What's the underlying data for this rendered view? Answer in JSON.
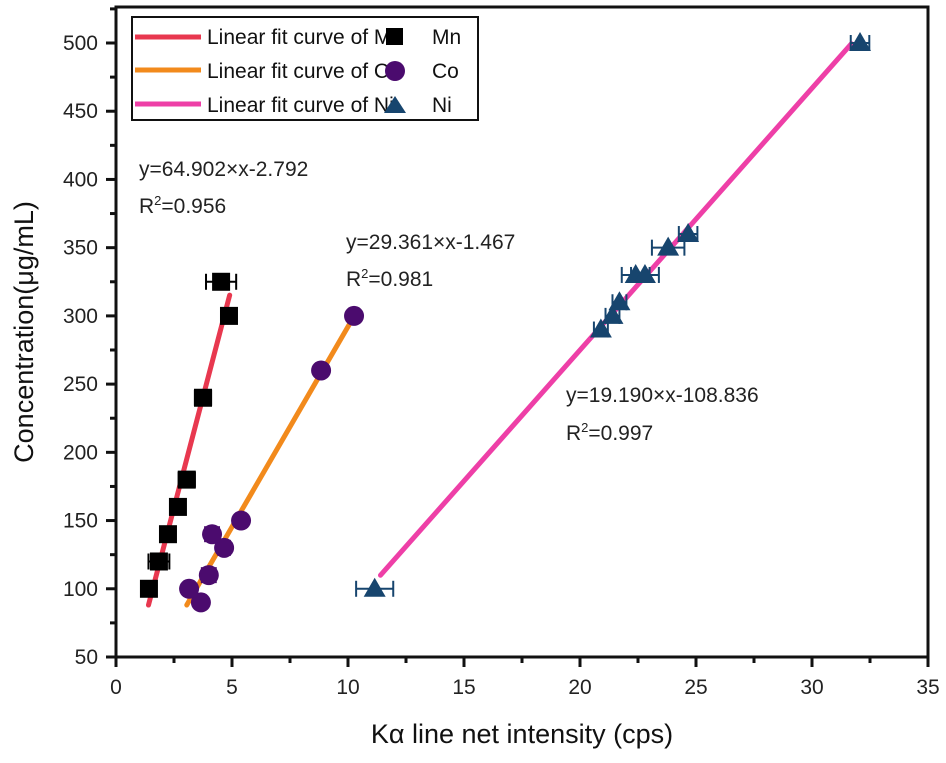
{
  "chart_data": {
    "type": "scatter",
    "title": "",
    "xlabel": "Kα line net intensity (cps)",
    "ylabel": "Concentration(μg/mL)",
    "xlim": [
      0,
      35
    ],
    "ylim": [
      50,
      520
    ],
    "xticks": [
      0,
      5,
      10,
      15,
      20,
      25,
      30,
      35
    ],
    "yticks": [
      50,
      100,
      150,
      200,
      250,
      300,
      350,
      400,
      450,
      500
    ],
    "grid": false,
    "legend_position": "top-left",
    "series": [
      {
        "name": "Mn",
        "marker": "square",
        "color": "#000000",
        "fit_label": "Linear fit curve of Mn",
        "fit_color": "#e8384f",
        "fit": {
          "slope": 64.902,
          "intercept": -2.792,
          "r2": 0.956,
          "x_range": [
            1.4,
            4.9
          ]
        },
        "equation": "y=64.902×x-2.792",
        "r2_label": "R",
        "r2_sup": "2",
        "r2_value": "=0.956",
        "points": [
          {
            "x": 1.42,
            "y": 100,
            "xerr": 0.3
          },
          {
            "x": 1.85,
            "y": 120,
            "xerr": 0.45
          },
          {
            "x": 2.24,
            "y": 140,
            "xerr": 0.2
          },
          {
            "x": 2.67,
            "y": 160,
            "xerr": 0.2
          },
          {
            "x": 3.05,
            "y": 180,
            "xerr": 0.35
          },
          {
            "x": 3.75,
            "y": 240,
            "xerr": 0.35
          },
          {
            "x": 4.87,
            "y": 300,
            "xerr": 0.2
          },
          {
            "x": 4.53,
            "y": 325,
            "xerr": 0.65
          }
        ]
      },
      {
        "name": "Co",
        "marker": "circle",
        "color": "#4b0b6e",
        "fit_label": "Linear fit curve of Co",
        "fit_color": "#f28a1c",
        "fit": {
          "slope": 29.361,
          "intercept": -1.467,
          "r2": 0.981,
          "x_range": [
            3.05,
            10.26
          ]
        },
        "equation": "y=29.361×x-1.467",
        "r2_label": "R",
        "r2_sup": "2",
        "r2_value": "=0.981",
        "points": [
          {
            "x": 3.66,
            "y": 90,
            "xerr": 0.2
          },
          {
            "x": 3.15,
            "y": 100,
            "xerr": 0.2
          },
          {
            "x": 4.0,
            "y": 110,
            "xerr": 0.3
          },
          {
            "x": 4.66,
            "y": 130,
            "xerr": 0.25
          },
          {
            "x": 4.14,
            "y": 140,
            "xerr": 0.3
          },
          {
            "x": 5.39,
            "y": 150,
            "xerr": 0.2
          },
          {
            "x": 8.84,
            "y": 260,
            "xerr": 0.2
          },
          {
            "x": 10.26,
            "y": 300,
            "xerr": 0.2
          }
        ]
      },
      {
        "name": "Ni",
        "marker": "triangle",
        "color": "#17456e",
        "fit_label": "Linear fit curve of Ni",
        "fit_color": "#ee3fa7",
        "fit": {
          "slope": 19.19,
          "intercept": -108.836,
          "r2": 0.997,
          "x_range": [
            11.4,
            31.7
          ]
        },
        "equation": "y=19.190×x-108.836",
        "r2_label": "R",
        "r2_sup": "2",
        "r2_value": "=0.997",
        "points": [
          {
            "x": 11.15,
            "y": 100,
            "xerr": 0.8
          },
          {
            "x": 20.9,
            "y": 290,
            "xerr": 0.3
          },
          {
            "x": 21.4,
            "y": 300,
            "xerr": 0.3
          },
          {
            "x": 21.7,
            "y": 310,
            "xerr": 0.3
          },
          {
            "x": 22.4,
            "y": 330,
            "xerr": 0.6
          },
          {
            "x": 22.8,
            "y": 330,
            "xerr": 0.6
          },
          {
            "x": 23.8,
            "y": 350,
            "xerr": 0.7
          },
          {
            "x": 24.66,
            "y": 360,
            "xerr": 0.4
          },
          {
            "x": 32.07,
            "y": 500,
            "xerr": 0.4
          }
        ]
      }
    ]
  }
}
